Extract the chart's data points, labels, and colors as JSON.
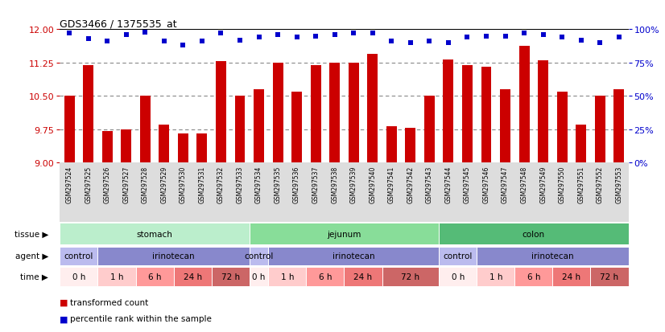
{
  "title": "GDS3466 / 1375535_at",
  "samples": [
    "GSM297524",
    "GSM297525",
    "GSM297526",
    "GSM297527",
    "GSM297528",
    "GSM297529",
    "GSM297530",
    "GSM297531",
    "GSM297532",
    "GSM297533",
    "GSM297534",
    "GSM297535",
    "GSM297536",
    "GSM297537",
    "GSM297538",
    "GSM297539",
    "GSM297540",
    "GSM297541",
    "GSM297542",
    "GSM297543",
    "GSM297544",
    "GSM297545",
    "GSM297546",
    "GSM297547",
    "GSM297548",
    "GSM297549",
    "GSM297550",
    "GSM297551",
    "GSM297552",
    "GSM297553"
  ],
  "bar_values": [
    10.5,
    11.2,
    9.7,
    9.75,
    10.5,
    9.85,
    9.65,
    9.65,
    11.28,
    10.5,
    10.65,
    11.25,
    10.6,
    11.2,
    11.25,
    11.25,
    11.45,
    9.82,
    9.78,
    10.5,
    11.32,
    11.2,
    11.15,
    10.65,
    11.62,
    11.3,
    10.6,
    9.85,
    10.5,
    10.65
  ],
  "percentile_values": [
    97,
    93,
    91,
    96,
    98,
    91,
    88,
    91,
    97,
    92,
    94,
    96,
    94,
    95,
    96,
    97,
    97,
    91,
    90,
    91,
    90,
    94,
    95,
    95,
    97,
    96,
    94,
    92,
    90,
    94
  ],
  "ylim_left": [
    9,
    12
  ],
  "ylim_right": [
    0,
    100
  ],
  "yticks_left": [
    9,
    9.75,
    10.5,
    11.25,
    12
  ],
  "yticks_right": [
    0,
    25,
    50,
    75,
    100
  ],
  "bar_color": "#cc0000",
  "dot_color": "#0000cc",
  "grid_color": "#888888",
  "tissue_groups": [
    {
      "label": "stomach",
      "start": 0,
      "end": 10,
      "color": "#bbeecc"
    },
    {
      "label": "jejunum",
      "start": 10,
      "end": 20,
      "color": "#88dd99"
    },
    {
      "label": "colon",
      "start": 20,
      "end": 30,
      "color": "#55bb77"
    }
  ],
  "agent_groups": [
    {
      "label": "control",
      "start": 0,
      "end": 2,
      "color": "#bbbbee"
    },
    {
      "label": "irinotecan",
      "start": 2,
      "end": 10,
      "color": "#8888cc"
    },
    {
      "label": "control",
      "start": 10,
      "end": 11,
      "color": "#bbbbee"
    },
    {
      "label": "irinotecan",
      "start": 11,
      "end": 20,
      "color": "#8888cc"
    },
    {
      "label": "control",
      "start": 20,
      "end": 22,
      "color": "#bbbbee"
    },
    {
      "label": "irinotecan",
      "start": 22,
      "end": 30,
      "color": "#8888cc"
    }
  ],
  "time_groups": [
    {
      "label": "0 h",
      "start": 0,
      "end": 2,
      "color": "#ffeeee"
    },
    {
      "label": "1 h",
      "start": 2,
      "end": 4,
      "color": "#ffcccc"
    },
    {
      "label": "6 h",
      "start": 4,
      "end": 6,
      "color": "#ff9999"
    },
    {
      "label": "24 h",
      "start": 6,
      "end": 8,
      "color": "#ee7777"
    },
    {
      "label": "72 h",
      "start": 8,
      "end": 10,
      "color": "#cc6666"
    },
    {
      "label": "0 h",
      "start": 10,
      "end": 11,
      "color": "#ffeeee"
    },
    {
      "label": "1 h",
      "start": 11,
      "end": 13,
      "color": "#ffcccc"
    },
    {
      "label": "6 h",
      "start": 13,
      "end": 15,
      "color": "#ff9999"
    },
    {
      "label": "24 h",
      "start": 15,
      "end": 17,
      "color": "#ee7777"
    },
    {
      "label": "72 h",
      "start": 17,
      "end": 20,
      "color": "#cc6666"
    },
    {
      "label": "0 h",
      "start": 20,
      "end": 22,
      "color": "#ffeeee"
    },
    {
      "label": "1 h",
      "start": 22,
      "end": 24,
      "color": "#ffcccc"
    },
    {
      "label": "6 h",
      "start": 24,
      "end": 26,
      "color": "#ff9999"
    },
    {
      "label": "24 h",
      "start": 26,
      "end": 28,
      "color": "#ee7777"
    },
    {
      "label": "72 h",
      "start": 28,
      "end": 30,
      "color": "#cc6666"
    }
  ],
  "legend_items": [
    {
      "label": "transformed count",
      "color": "#cc0000"
    },
    {
      "label": "percentile rank within the sample",
      "color": "#0000cc"
    }
  ],
  "background_color": "#ffffff",
  "xtick_bg": "#dddddd"
}
